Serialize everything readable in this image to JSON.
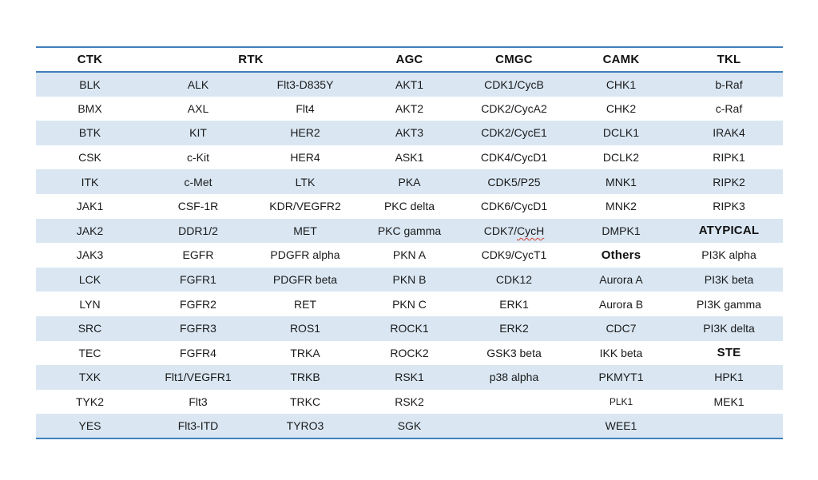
{
  "colors": {
    "rule_line": "#3F7FBC",
    "row_stripe": "#DAE7F3",
    "text": "#1A1A1A",
    "spellcheck_squiggle": "#D23F31",
    "page_background": "#FFFFFF"
  },
  "table": {
    "headers": [
      {
        "label": "CTK",
        "span": 1
      },
      {
        "label": "RTK",
        "span": 2
      },
      {
        "label": "AGC",
        "span": 1
      },
      {
        "label": "CMGC",
        "span": 1
      },
      {
        "label": "CAMK",
        "span": 1
      },
      {
        "label": "TKL",
        "span": 1
      }
    ],
    "rows": [
      [
        "BLK",
        "ALK",
        "Flt3-D835Y",
        "AKT1",
        "CDK1/CycB",
        "CHK1",
        "b-Raf"
      ],
      [
        "BMX",
        "AXL",
        "Flt4",
        "AKT2",
        "CDK2/CycA2",
        "CHK2",
        "c-Raf"
      ],
      [
        "BTK",
        "KIT",
        "HER2",
        "AKT3",
        "CDK2/CycE1",
        "DCLK1",
        "IRAK4"
      ],
      [
        "CSK",
        "c-Kit",
        "HER4",
        "ASK1",
        "CDK4/CycD1",
        "DCLK2",
        "RIPK1"
      ],
      [
        "ITK",
        "c-Met",
        "LTK",
        "PKA",
        "CDK5/P25",
        "MNK1",
        "RIPK2"
      ],
      [
        "JAK1",
        "CSF-1R",
        "KDR/VEGFR2",
        "PKC delta",
        "CDK6/CycD1",
        "MNK2",
        "RIPK3"
      ],
      [
        "JAK2",
        "DDR1/2",
        "MET",
        "PKC gamma",
        {
          "text": "CDK7/CycH",
          "misspelled": "CycH"
        },
        "DMPK1",
        {
          "text": "ATYPICAL",
          "bold": true
        }
      ],
      [
        "JAK3",
        "EGFR",
        "PDGFR alpha",
        "PKN A",
        "CDK9/CycT1",
        {
          "text": "Others",
          "bold": true
        },
        "PI3K alpha"
      ],
      [
        "LCK",
        "FGFR1",
        "PDGFR beta",
        "PKN B",
        "CDK12",
        "Aurora A",
        "PI3K beta"
      ],
      [
        "LYN",
        "FGFR2",
        "RET",
        "PKN C",
        "ERK1",
        "Aurora B",
        "PI3K gamma"
      ],
      [
        "SRC",
        "FGFR3",
        "ROS1",
        "ROCK1",
        "ERK2",
        "CDC7",
        "PI3K delta"
      ],
      [
        "TEC",
        "FGFR4",
        "TRKA",
        "ROCK2",
        "GSK3 beta",
        "IKK beta",
        {
          "text": "STE",
          "bold": true
        }
      ],
      [
        "TXK",
        "Flt1/VEGFR1",
        "TRKB",
        "RSK1",
        "p38 alpha",
        "PKMYT1",
        "HPK1"
      ],
      [
        "TYK2",
        "Flt3",
        "TRKC",
        "RSK2",
        "",
        {
          "text": "PLK1",
          "small": true
        },
        "MEK1"
      ],
      [
        "YES",
        "Flt3-ITD",
        "TYRO3",
        "SGK",
        "",
        "WEE1",
        ""
      ]
    ]
  }
}
